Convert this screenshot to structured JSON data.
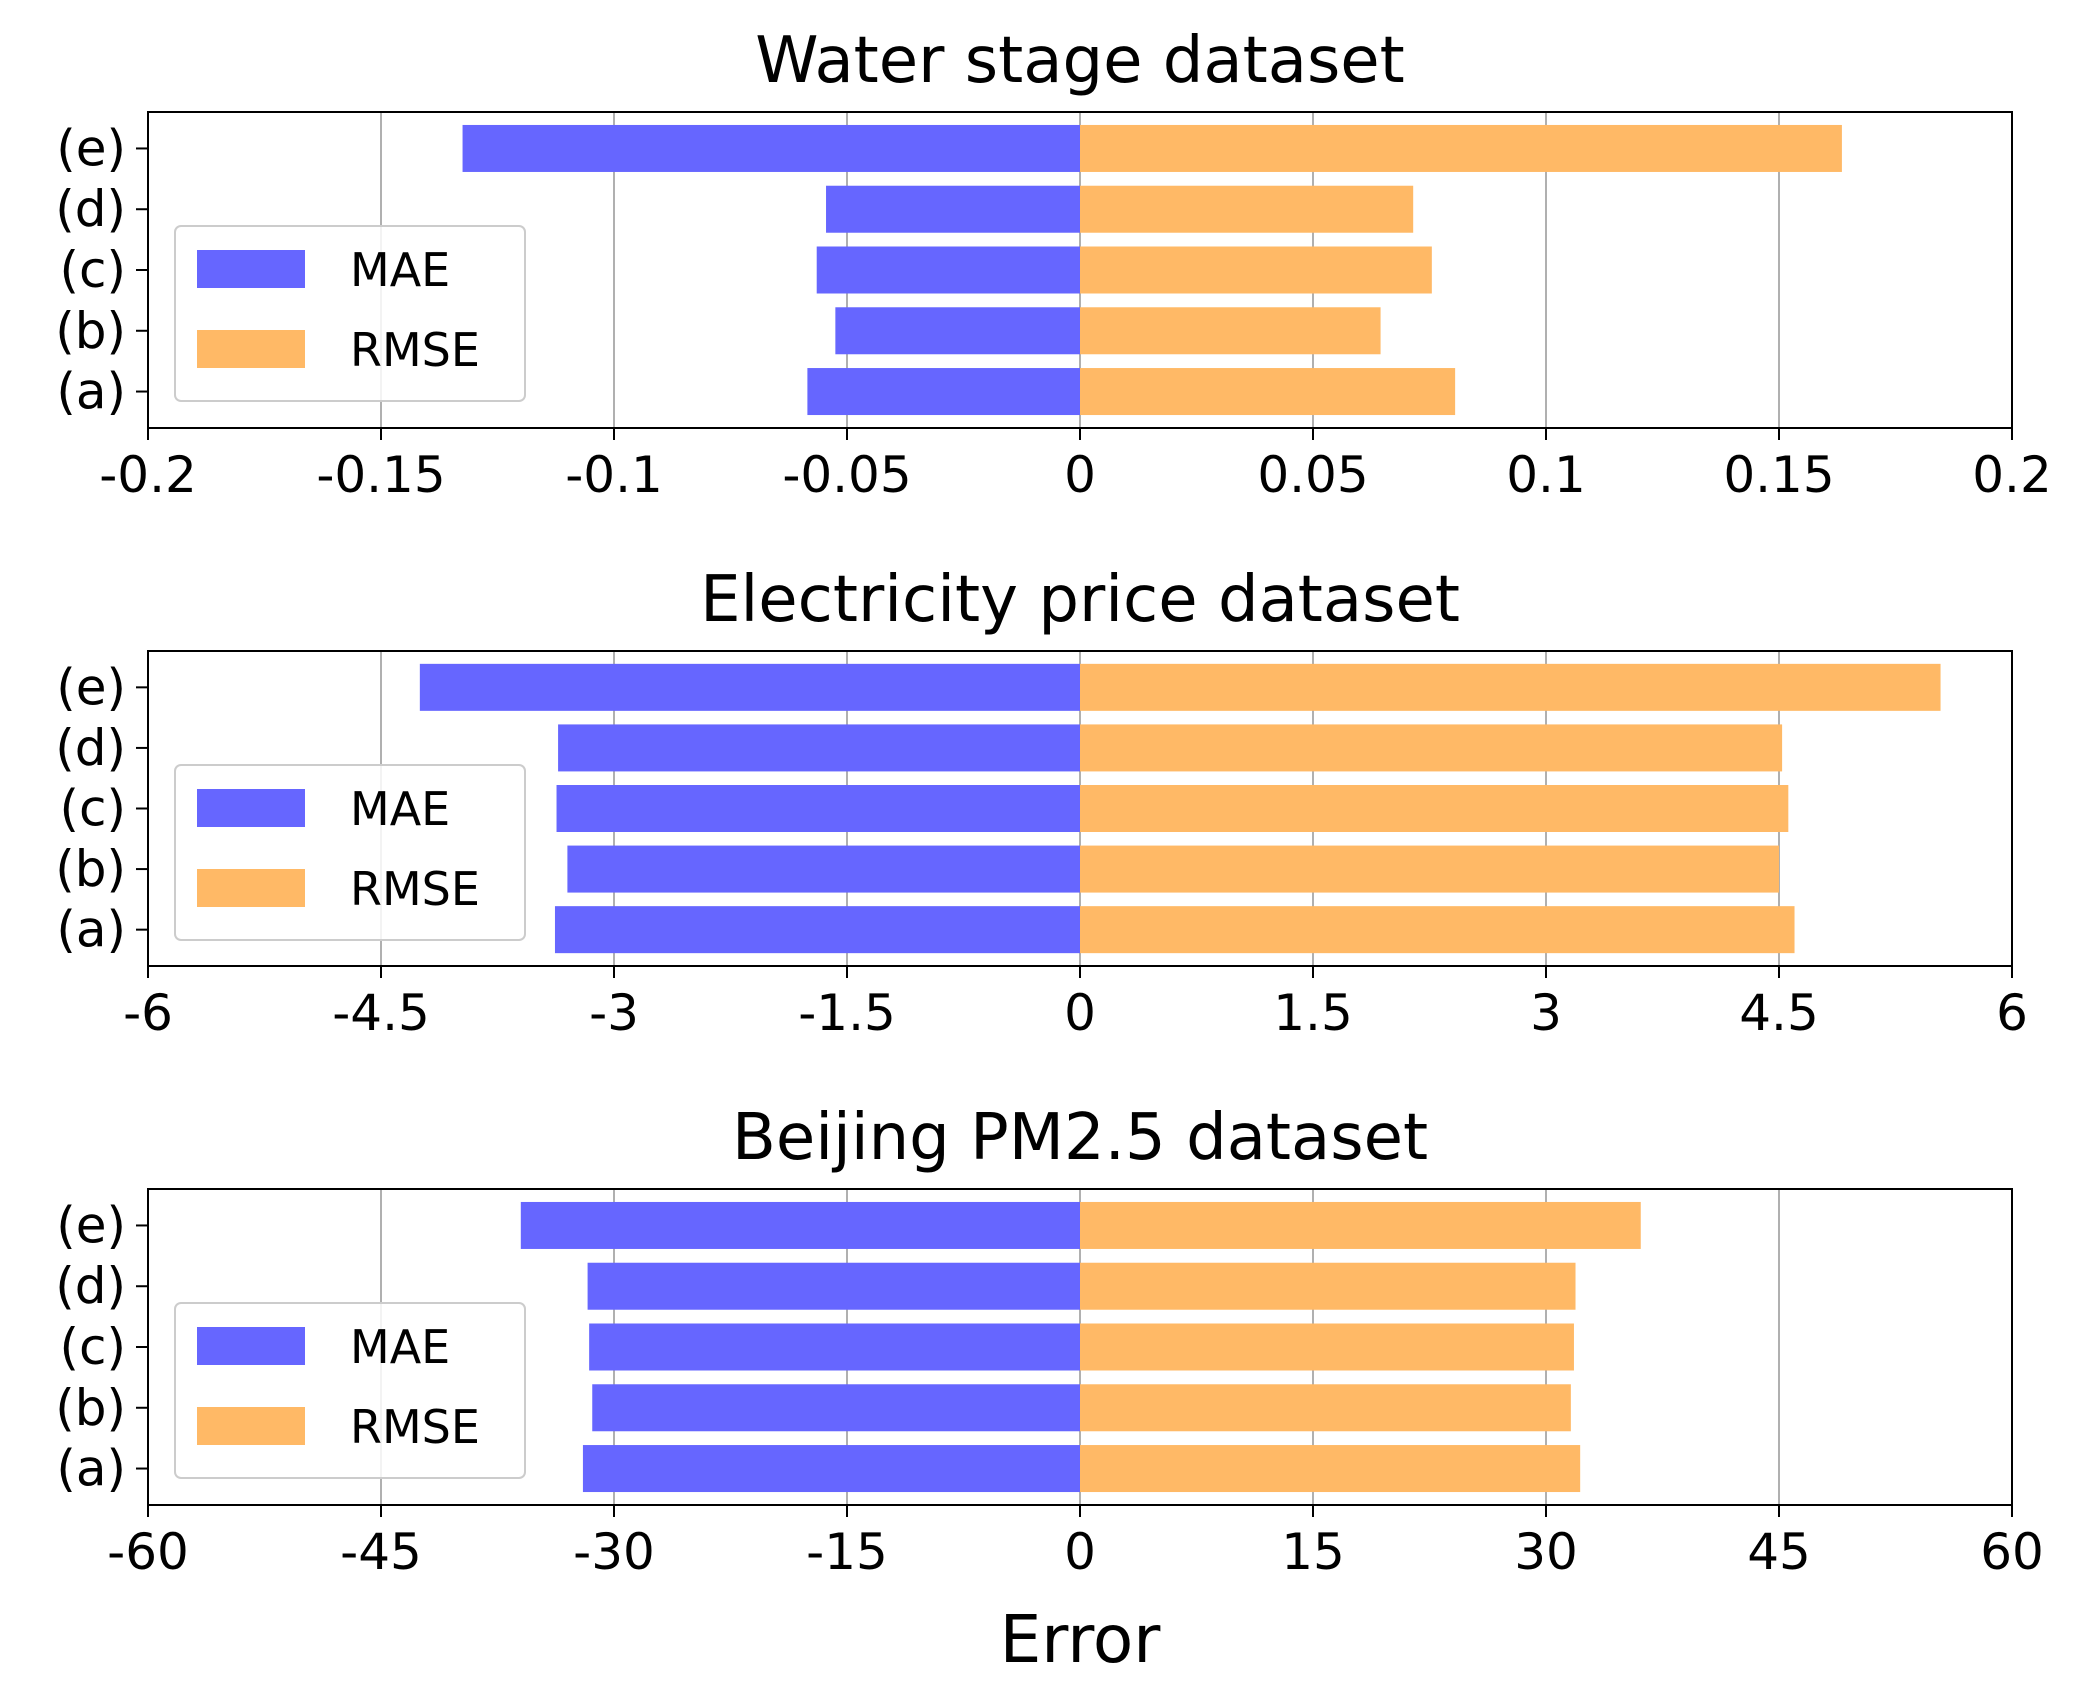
{
  "colors": {
    "mae": "#6666ff",
    "rmse": "#ffb966",
    "grid": "#b0b0b0",
    "axis": "#000000",
    "legend_border": "#cccccc"
  },
  "xlabel": "Error",
  "chart_data": [
    {
      "type": "bar",
      "orientation": "horizontal-diverging",
      "title": "Water stage dataset",
      "categories": [
        "(a)",
        "(b)",
        "(c)",
        "(d)",
        "(e)"
      ],
      "xlim": [
        -0.2,
        0.2
      ],
      "xticks": [
        -0.2,
        -0.15,
        -0.1,
        -0.05,
        0,
        0.05,
        0.1,
        0.15,
        0.2
      ],
      "xtick_labels": [
        "-0.2",
        "-0.15",
        "-0.1",
        "-0.05",
        "0",
        "0.05",
        "0.1",
        "0.15",
        "0.2"
      ],
      "grid": true,
      "legend": {
        "position": "lower-left",
        "labels": [
          "MAE",
          "RMSE"
        ]
      },
      "series": [
        {
          "name": "MAE",
          "values": [
            -0.0585,
            -0.0525,
            -0.0565,
            -0.0545,
            -0.1325
          ]
        },
        {
          "name": "RMSE",
          "values": [
            0.0805,
            0.0645,
            0.0755,
            0.0715,
            0.1635
          ]
        }
      ]
    },
    {
      "type": "bar",
      "orientation": "horizontal-diverging",
      "title": "Electricity price dataset",
      "categories": [
        "(a)",
        "(b)",
        "(c)",
        "(d)",
        "(e)"
      ],
      "xlim": [
        -6,
        6
      ],
      "xticks": [
        -6,
        -4.5,
        -3,
        -1.5,
        0,
        1.5,
        3,
        4.5,
        6
      ],
      "xtick_labels": [
        "-6",
        "-4.5",
        "-3",
        "-1.5",
        "0",
        "1.5",
        "3",
        "4.5",
        "6"
      ],
      "grid": true,
      "legend": {
        "position": "lower-left",
        "labels": [
          "MAE",
          "RMSE"
        ]
      },
      "series": [
        {
          "name": "MAE",
          "values": [
            -3.38,
            -3.3,
            -3.37,
            -3.36,
            -4.25
          ]
        },
        {
          "name": "RMSE",
          "values": [
            4.6,
            4.5,
            4.56,
            4.52,
            5.54
          ]
        }
      ]
    },
    {
      "type": "bar",
      "orientation": "horizontal-diverging",
      "title": "Beijing PM2.5 dataset",
      "categories": [
        "(a)",
        "(b)",
        "(c)",
        "(d)",
        "(e)"
      ],
      "xlim": [
        -60,
        60
      ],
      "xticks": [
        -60,
        -45,
        -30,
        -15,
        0,
        15,
        30,
        45,
        60
      ],
      "xtick_labels": [
        "-60",
        "-45",
        "-30",
        "-15",
        "0",
        "15",
        "30",
        "45",
        "60"
      ],
      "grid": true,
      "legend": {
        "position": "lower-left",
        "labels": [
          "MAE",
          "RMSE"
        ]
      },
      "series": [
        {
          "name": "MAE",
          "values": [
            -32.0,
            -31.4,
            -31.6,
            -31.7,
            -36.0
          ]
        },
        {
          "name": "RMSE",
          "values": [
            32.2,
            31.6,
            31.8,
            31.9,
            36.1
          ]
        }
      ]
    }
  ]
}
